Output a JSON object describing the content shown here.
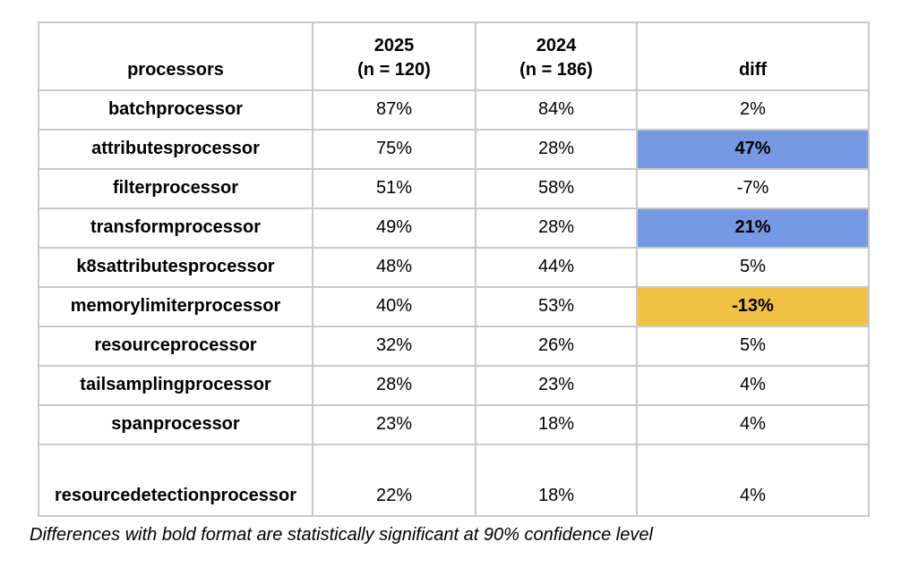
{
  "table": {
    "headers": {
      "processors": "processors",
      "y2025": "2025\n(n = 120)",
      "y2024": "2024\n(n = 186)",
      "diff": "diff"
    },
    "rows": [
      {
        "processor": "batchprocessor",
        "y2025": "87%",
        "y2024": "84%",
        "diff": "2%",
        "highlight": null
      },
      {
        "processor": "attributesprocessor",
        "y2025": "75%",
        "y2024": "28%",
        "diff": "47%",
        "highlight": "blue"
      },
      {
        "processor": "filterprocessor",
        "y2025": "51%",
        "y2024": "58%",
        "diff": "-7%",
        "highlight": null
      },
      {
        "processor": "transformprocessor",
        "y2025": "49%",
        "y2024": "28%",
        "diff": "21%",
        "highlight": "blue"
      },
      {
        "processor": "k8sattributesprocessor",
        "y2025": "48%",
        "y2024": "44%",
        "diff": "5%",
        "highlight": null
      },
      {
        "processor": "memorylimiterprocessor",
        "y2025": "40%",
        "y2024": "53%",
        "diff": "-13%",
        "highlight": "gold"
      },
      {
        "processor": "resourceprocessor",
        "y2025": "32%",
        "y2024": "26%",
        "diff": "5%",
        "highlight": null
      },
      {
        "processor": "tailsamplingprocessor",
        "y2025": "28%",
        "y2024": "23%",
        "diff": "4%",
        "highlight": null
      },
      {
        "processor": "spanprocessor",
        "y2025": "23%",
        "y2024": "18%",
        "diff": "4%",
        "highlight": null
      },
      {
        "processor": "resourcedetectionprocessor",
        "y2025": "22%",
        "y2024": "18%",
        "diff": "4%",
        "highlight": null
      }
    ]
  },
  "footnote": "Differences with bold format are statistically significant at 90% confidence level",
  "colors": {
    "significant_increase_bg": "#7599e2",
    "significant_decrease_bg": "#f0c143",
    "grid_line": "#c9c9c9",
    "text": "#000000"
  },
  "chart_data": {
    "type": "table",
    "title": "",
    "categories": [
      "batchprocessor",
      "attributesprocessor",
      "filterprocessor",
      "transformprocessor",
      "k8sattributesprocessor",
      "memorylimiterprocessor",
      "resourceprocessor",
      "tailsamplingprocessor",
      "spanprocessor",
      "resourcedetectionprocessor"
    ],
    "series": [
      {
        "name": "2025 (n = 120)",
        "values": [
          87,
          75,
          51,
          49,
          48,
          40,
          32,
          28,
          23,
          22
        ]
      },
      {
        "name": "2024 (n = 186)",
        "values": [
          84,
          28,
          58,
          28,
          44,
          53,
          26,
          23,
          18,
          18
        ]
      },
      {
        "name": "diff",
        "values": [
          2,
          47,
          -7,
          21,
          5,
          -13,
          5,
          4,
          4,
          4
        ]
      }
    ],
    "units": "%",
    "significant_rows": [
      "attributesprocessor",
      "transformprocessor",
      "memorylimiterprocessor"
    ],
    "note": "Differences with bold format are statistically significant at 90% confidence level"
  }
}
